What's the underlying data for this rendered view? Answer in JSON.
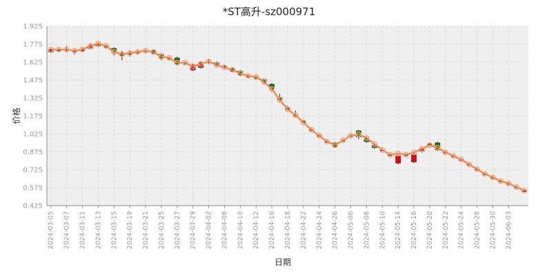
{
  "chart_data": {
    "type": "candlestick",
    "title": "*ST高升-sz000971",
    "xlabel": "日期",
    "ylabel": "价格",
    "ylim": [
      0.425,
      1.925
    ],
    "yticks": [
      "0.425",
      "0.575",
      "0.725",
      "0.875",
      "1.025",
      "1.175",
      "1.325",
      "1.475",
      "1.625",
      "1.775",
      "1.925"
    ],
    "grid": true,
    "up_color": "#e8000b",
    "down_color": "#007d00",
    "line_color": "#f07f3c",
    "marker_color": "#f4a27a",
    "dates": [
      "2024-03-05",
      "2024-03-06",
      "2024-03-07",
      "2024-03-08",
      "2024-03-11",
      "2024-03-12",
      "2024-03-13",
      "2024-03-14",
      "2024-03-15",
      "2024-03-18",
      "2024-03-19",
      "2024-03-20",
      "2024-03-21",
      "2024-03-22",
      "2024-03-25",
      "2024-03-26",
      "2024-03-27",
      "2024-03-28",
      "2024-03-29",
      "2024-04-01",
      "2024-04-02",
      "2024-04-03",
      "2024-04-08",
      "2024-04-09",
      "2024-04-10",
      "2024-04-11",
      "2024-04-12",
      "2024-04-15",
      "2024-04-16",
      "2024-04-17",
      "2024-04-18",
      "2024-04-19",
      "2024-04-22",
      "2024-04-23",
      "2024-04-24",
      "2024-04-25",
      "2024-04-26",
      "2024-04-29",
      "2024-05-06",
      "2024-05-07",
      "2024-05-08",
      "2024-05-09",
      "2024-05-10",
      "2024-05-13",
      "2024-05-14",
      "2024-05-15",
      "2024-05-16",
      "2024-05-17",
      "2024-05-20",
      "2024-05-21",
      "2024-05-22",
      "2024-05-23",
      "2024-05-24",
      "2024-05-27",
      "2024-05-28",
      "2024-05-29",
      "2024-05-30",
      "2024-05-31",
      "2024-06-03",
      "2024-06-04",
      "2024-06-05"
    ],
    "xtick_labels": [
      "2024-03-05",
      "2024-03-07",
      "2024-03-11",
      "2024-03-13",
      "2024-03-15",
      "2024-03-19",
      "2024-03-21",
      "2024-03-25",
      "2024-03-27",
      "2024-03-29",
      "2024-04-02",
      "2024-04-08",
      "2024-04-10",
      "2024-04-12",
      "2024-04-16",
      "2024-04-18",
      "2024-04-22",
      "2024-04-24",
      "2024-04-26",
      "2024-05-06",
      "2024-05-08",
      "2024-05-10",
      "2024-05-14",
      "2024-05-16",
      "2024-05-20",
      "2024-05-22",
      "2024-05-24",
      "2024-05-28",
      "2024-05-30",
      "2024-06-03"
    ],
    "close": [
      1.73,
      1.73,
      1.73,
      1.72,
      1.73,
      1.76,
      1.78,
      1.76,
      1.71,
      1.69,
      1.7,
      1.71,
      1.72,
      1.71,
      1.67,
      1.66,
      1.62,
      1.62,
      1.59,
      1.61,
      1.63,
      1.6,
      1.58,
      1.56,
      1.53,
      1.51,
      1.5,
      1.46,
      1.4,
      1.31,
      1.23,
      1.18,
      1.12,
      1.06,
      1.01,
      0.96,
      0.93,
      0.97,
      1.01,
      1.02,
      0.99,
      0.94,
      0.89,
      0.85,
      0.86,
      0.85,
      0.87,
      0.9,
      0.93,
      0.91,
      0.87,
      0.84,
      0.81,
      0.77,
      0.73,
      0.69,
      0.66,
      0.63,
      0.61,
      0.58,
      0.55
    ],
    "candles": [
      [
        1.71,
        1.73,
        1.74,
        1.7
      ],
      [
        1.72,
        1.73,
        1.74,
        1.71
      ],
      [
        1.73,
        1.73,
        1.76,
        1.71
      ],
      [
        1.72,
        1.72,
        1.73,
        1.69
      ],
      [
        1.72,
        1.73,
        1.74,
        1.71
      ],
      [
        1.74,
        1.76,
        1.78,
        1.73
      ],
      [
        1.76,
        1.78,
        1.79,
        1.75
      ],
      [
        1.75,
        1.76,
        1.77,
        1.74
      ],
      [
        1.74,
        1.71,
        1.75,
        1.68
      ],
      [
        1.7,
        1.68,
        1.72,
        1.64
      ],
      [
        1.69,
        1.7,
        1.72,
        1.67
      ],
      [
        1.71,
        1.71,
        1.72,
        1.69
      ],
      [
        1.72,
        1.72,
        1.73,
        1.7
      ],
      [
        1.72,
        1.7,
        1.73,
        1.69
      ],
      [
        1.69,
        1.66,
        1.7,
        1.64
      ],
      [
        1.66,
        1.66,
        1.67,
        1.64
      ],
      [
        1.66,
        1.61,
        1.67,
        1.6
      ],
      [
        1.62,
        1.62,
        1.63,
        1.6
      ],
      [
        1.56,
        1.6,
        1.61,
        1.55
      ],
      [
        1.58,
        1.62,
        1.63,
        1.57
      ],
      [
        1.63,
        1.63,
        1.65,
        1.61
      ],
      [
        1.62,
        1.6,
        1.63,
        1.59
      ],
      [
        1.59,
        1.58,
        1.6,
        1.57
      ],
      [
        1.57,
        1.55,
        1.58,
        1.54
      ],
      [
        1.55,
        1.52,
        1.56,
        1.51
      ],
      [
        1.51,
        1.51,
        1.52,
        1.49
      ],
      [
        1.5,
        1.49,
        1.51,
        1.48
      ],
      [
        1.48,
        1.46,
        1.49,
        1.44
      ],
      [
        1.44,
        1.4,
        1.45,
        1.38
      ],
      [
        1.33,
        1.31,
        1.36,
        1.29
      ],
      [
        1.24,
        1.23,
        1.26,
        1.22
      ],
      [
        1.18,
        1.18,
        1.22,
        1.17
      ],
      [
        1.13,
        1.12,
        1.14,
        1.11
      ],
      [
        1.06,
        1.06,
        1.07,
        1.05
      ],
      [
        1.01,
        1.01,
        1.02,
        1.0
      ],
      [
        0.96,
        0.96,
        0.97,
        0.95
      ],
      [
        0.95,
        0.92,
        0.96,
        0.91
      ],
      [
        0.97,
        0.97,
        0.98,
        0.96
      ],
      [
        1.01,
        1.01,
        1.02,
        1.0
      ],
      [
        1.05,
        1.0,
        1.06,
        0.98
      ],
      [
        0.99,
        0.96,
        1.0,
        0.95
      ],
      [
        0.93,
        0.91,
        0.94,
        0.9
      ],
      [
        0.89,
        0.89,
        0.9,
        0.88
      ],
      [
        0.85,
        0.85,
        0.86,
        0.84
      ],
      [
        0.78,
        0.84,
        0.85,
        0.77
      ],
      [
        0.85,
        0.85,
        0.86,
        0.84
      ],
      [
        0.79,
        0.85,
        0.87,
        0.78
      ],
      [
        0.88,
        0.9,
        0.91,
        0.87
      ],
      [
        0.94,
        0.94,
        0.95,
        0.93
      ],
      [
        0.95,
        0.89,
        0.96,
        0.88
      ],
      [
        0.87,
        0.87,
        0.88,
        0.86
      ],
      [
        0.84,
        0.84,
        0.85,
        0.83
      ],
      [
        0.81,
        0.81,
        0.82,
        0.8
      ],
      [
        0.77,
        0.77,
        0.78,
        0.76
      ],
      [
        0.73,
        0.73,
        0.74,
        0.72
      ],
      [
        0.69,
        0.69,
        0.7,
        0.68
      ],
      [
        0.66,
        0.66,
        0.67,
        0.65
      ],
      [
        0.63,
        0.63,
        0.64,
        0.62
      ],
      [
        0.61,
        0.61,
        0.62,
        0.6
      ],
      [
        0.58,
        0.58,
        0.59,
        0.57
      ],
      [
        0.55,
        0.55,
        0.56,
        0.54
      ]
    ]
  }
}
